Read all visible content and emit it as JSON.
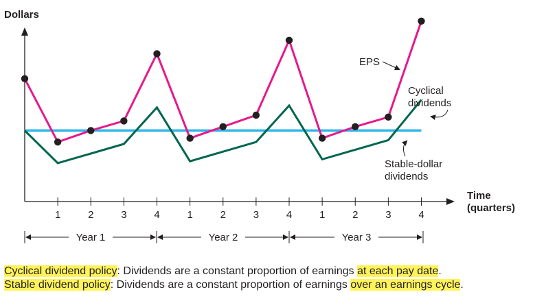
{
  "chart_data": {
    "type": "line",
    "ylabel": "Dollars",
    "xlabel_line1": "Time",
    "xlabel_line2": "(quarters)",
    "tick_labels": [
      "1",
      "2",
      "3",
      "4",
      "1",
      "2",
      "3",
      "4",
      "1",
      "2",
      "3",
      "4"
    ],
    "x": [
      0,
      1,
      2,
      3,
      4,
      5,
      6,
      7,
      8,
      9,
      10,
      11,
      12
    ],
    "ylim": [
      0,
      10
    ],
    "xlim": [
      0,
      12.8
    ],
    "grid": false,
    "legend": "none",
    "series": [
      {
        "key": "eps",
        "name": "EPS",
        "color": "#e6198c",
        "markers": true,
        "values": [
          6.4,
          3.1,
          3.7,
          4.2,
          7.7,
          3.3,
          3.9,
          4.5,
          8.4,
          3.3,
          3.9,
          4.4,
          9.4
        ]
      },
      {
        "key": "cyclical",
        "name": "Cyclical dividends",
        "color": "#00664f",
        "markers": false,
        "values": [
          3.7,
          2.0,
          2.5,
          3.0,
          4.9,
          2.1,
          2.6,
          3.1,
          5.0,
          2.2,
          2.7,
          3.2,
          5.3
        ]
      },
      {
        "key": "stable",
        "name": "Stable-dollar dividends",
        "color": "#2fb5e8",
        "markers": false,
        "values": [
          3.7,
          3.7,
          3.7,
          3.7,
          3.7,
          3.7,
          3.7,
          3.7,
          3.7,
          3.7,
          3.7,
          3.7,
          3.7
        ]
      }
    ],
    "annotations": {
      "eps": "EPS",
      "cyclical_line1": "Cyclical",
      "cyclical_line2": "dividends",
      "stable_line1": "Stable-dollar",
      "stable_line2": "dividends"
    },
    "years": [
      "Year 1",
      "Year 2",
      "Year 3"
    ]
  },
  "notes": {
    "line1": {
      "term": "Cyclical dividend policy",
      "mid": ": Dividends are a constant proportion of earnings ",
      "highlight": "at each pay date",
      "end": "."
    },
    "line2": {
      "term": "Stable dividend policy",
      "mid": ": Dividends are a constant proportion of earnings ",
      "highlight": "over an earnings cycle",
      "end": "."
    }
  }
}
